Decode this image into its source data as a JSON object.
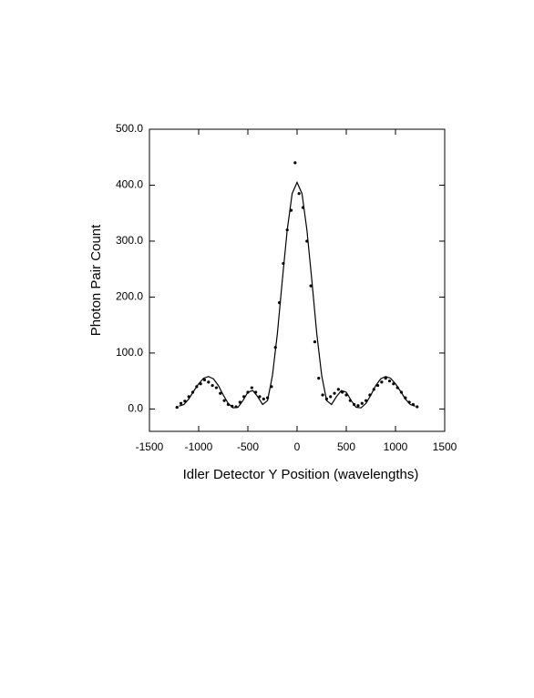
{
  "chart_data": {
    "type": "scatter",
    "xlabel": "Idler Detector Y Position (wavelengths)",
    "ylabel": "Photon Pair Count",
    "xlim": [
      -1500,
      1500
    ],
    "ylim": [
      -40,
      500
    ],
    "xticks": [
      -1500,
      -1000,
      -500,
      0,
      500,
      1000,
      1500
    ],
    "yticks": [
      {
        "value": 0,
        "label": "0.0"
      },
      {
        "value": 100,
        "label": "100.0"
      },
      {
        "value": 200,
        "label": "200.0"
      },
      {
        "value": 300,
        "label": "300.0"
      },
      {
        "value": 400,
        "label": "400.0"
      },
      {
        "value": 500,
        "label": "500.0"
      }
    ],
    "series": [
      {
        "type": "line",
        "color": "#000000",
        "x": [
          -1200,
          -1150,
          -1100,
          -1050,
          -1000,
          -950,
          -900,
          -850,
          -800,
          -750,
          -700,
          -650,
          -600,
          -550,
          -500,
          -450,
          -400,
          -350,
          -300,
          -250,
          -200,
          -150,
          -100,
          -50,
          0,
          50,
          100,
          150,
          200,
          250,
          300,
          350,
          400,
          450,
          500,
          550,
          600,
          650,
          700,
          750,
          800,
          850,
          900,
          950,
          1000,
          1050,
          1100,
          1150,
          1200
        ],
        "values": [
          5,
          8,
          18,
          32,
          45,
          55,
          58,
          54,
          42,
          25,
          10,
          2,
          3,
          15,
          30,
          33,
          22,
          8,
          15,
          60,
          135,
          230,
          320,
          385,
          405,
          385,
          320,
          230,
          135,
          60,
          15,
          8,
          22,
          33,
          30,
          15,
          3,
          2,
          10,
          25,
          42,
          54,
          58,
          55,
          45,
          32,
          18,
          8,
          5
        ]
      },
      {
        "type": "scatter",
        "color": "#000000",
        "x": [
          -1220,
          -1180,
          -1140,
          -1100,
          -1060,
          -1020,
          -980,
          -940,
          -900,
          -860,
          -820,
          -780,
          -740,
          -700,
          -660,
          -620,
          -580,
          -540,
          -500,
          -460,
          -420,
          -380,
          -340,
          -300,
          -260,
          -220,
          -180,
          -140,
          -100,
          -60,
          -20,
          20,
          60,
          100,
          140,
          180,
          220,
          260,
          300,
          340,
          380,
          420,
          460,
          500,
          540,
          580,
          620,
          660,
          700,
          740,
          780,
          820,
          860,
          900,
          940,
          980,
          1020,
          1060,
          1100,
          1140,
          1180,
          1220
        ],
        "values": [
          3,
          10,
          14,
          22,
          30,
          40,
          45,
          52,
          48,
          42,
          38,
          28,
          15,
          8,
          5,
          4,
          12,
          22,
          30,
          38,
          30,
          22,
          18,
          20,
          40,
          110,
          190,
          260,
          320,
          355,
          440,
          385,
          360,
          300,
          220,
          120,
          55,
          25,
          18,
          22,
          28,
          35,
          30,
          25,
          15,
          8,
          6,
          10,
          15,
          25,
          35,
          42,
          48,
          55,
          50,
          45,
          38,
          30,
          20,
          12,
          8,
          4
        ]
      }
    ]
  }
}
